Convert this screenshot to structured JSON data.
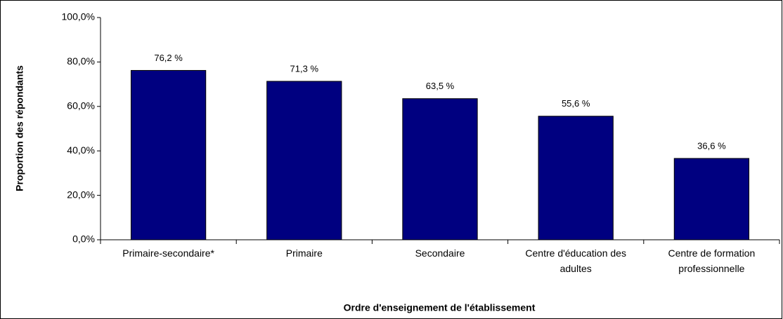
{
  "chart_data": {
    "type": "bar",
    "x_label": "Ordre d'enseignement de l'établissement",
    "y_label": "Proportion des répondants",
    "categories": [
      "Primaire-secondaire*",
      "Primaire",
      "Secondaire",
      "Centre d'éducation des adultes",
      "Centre de formation professionnelle"
    ],
    "values": [
      76.2,
      71.3,
      63.5,
      55.6,
      36.6
    ],
    "value_labels": [
      "76,2 %",
      "71,3 %",
      "63,5 %",
      "55,6 %",
      "36,6 %"
    ],
    "color": "#000080",
    "ylim": [
      0,
      100
    ],
    "yticks": [
      {
        "value": 0,
        "label": "0,0%"
      },
      {
        "value": 20,
        "label": "20,0%"
      },
      {
        "value": 40,
        "label": "40,0%"
      },
      {
        "value": 60,
        "label": "60,0%"
      },
      {
        "value": 80,
        "label": "80,0%"
      },
      {
        "value": 100,
        "label": "100,0%"
      }
    ],
    "grid": false
  }
}
